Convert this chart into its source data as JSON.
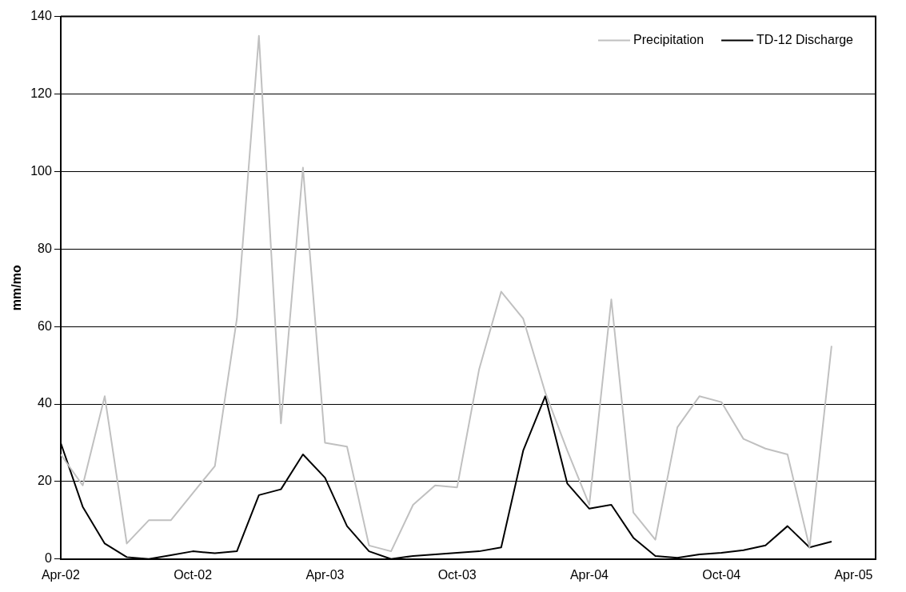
{
  "chart_data": {
    "type": "line",
    "ylabel": "mm/mo",
    "x": [
      "2002-04",
      "2002-05",
      "2002-06",
      "2002-07",
      "2002-08",
      "2002-09",
      "2002-10",
      "2002-11",
      "2002-12",
      "2003-01",
      "2003-02",
      "2003-03",
      "2003-04",
      "2003-05",
      "2003-06",
      "2003-07",
      "2003-08",
      "2003-09",
      "2003-10",
      "2003-11",
      "2003-12",
      "2004-01",
      "2004-02",
      "2004-03",
      "2004-04",
      "2004-05",
      "2004-06",
      "2004-07",
      "2004-08",
      "2004-09",
      "2004-10",
      "2004-11",
      "2004-12",
      "2005-01",
      "2005-02",
      "2005-03"
    ],
    "series": [
      {
        "name": "Precipitation",
        "color": "#c0c0c0",
        "values": [
          27,
          19,
          42,
          4,
          10,
          10,
          17,
          24,
          62,
          135,
          35,
          101,
          30,
          29,
          3.5,
          2,
          14,
          19,
          18.5,
          49,
          69,
          62,
          43,
          28,
          14,
          67,
          12,
          5,
          34,
          42,
          40.5,
          31,
          28.5,
          27,
          3,
          55
        ]
      },
      {
        "name": "TD-12 Discharge",
        "color": "#000000",
        "values": [
          30,
          13.5,
          4,
          0.5,
          0,
          1,
          2,
          1.5,
          2,
          16.5,
          18,
          27,
          21,
          8.5,
          2,
          0,
          0.8,
          1.2,
          1.6,
          2,
          3,
          28,
          42,
          19.5,
          13,
          14,
          5.5,
          0.8,
          0.3,
          1.2,
          1.6,
          2.3,
          3.5,
          8.5,
          3,
          4.5
        ]
      }
    ],
    "xlim": [
      "2002-04",
      "2005-05"
    ],
    "xticks": [
      {
        "value": "2002-04",
        "label": "Apr-02"
      },
      {
        "value": "2002-10",
        "label": "Oct-02"
      },
      {
        "value": "2003-04",
        "label": "Apr-03"
      },
      {
        "value": "2003-10",
        "label": "Oct-03"
      },
      {
        "value": "2004-04",
        "label": "Apr-04"
      },
      {
        "value": "2004-10",
        "label": "Oct-04"
      },
      {
        "value": "2005-04",
        "label": "Apr-05"
      }
    ],
    "ylim": [
      0,
      140
    ],
    "yticks": [
      0,
      20,
      40,
      60,
      80,
      100,
      120,
      140
    ],
    "grid": "y",
    "legend": "top right",
    "marker": "none",
    "line_style": "solid"
  }
}
